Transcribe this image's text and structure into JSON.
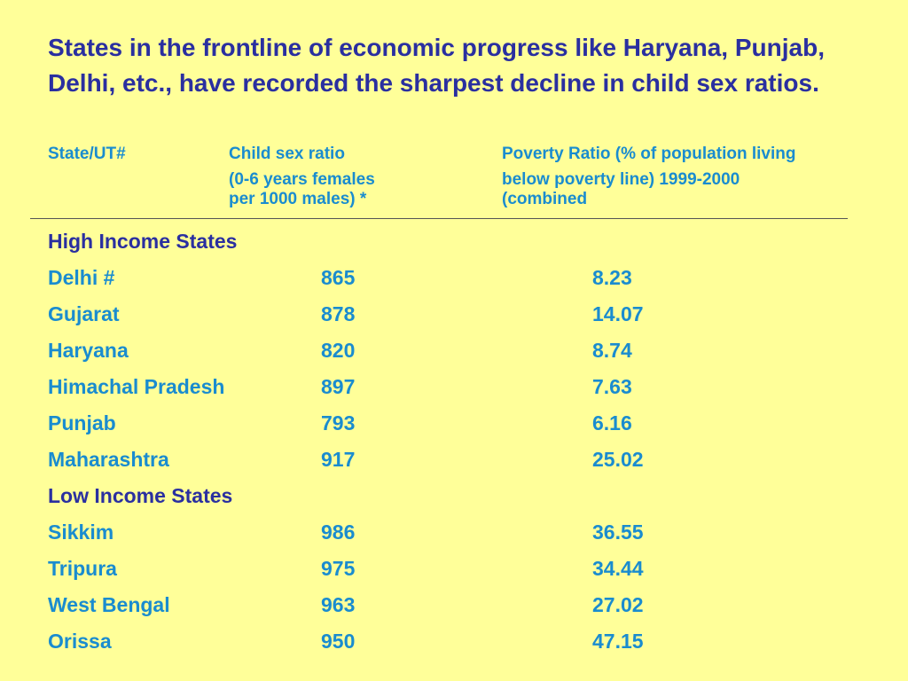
{
  "title": "States in the frontline of economic progress like Haryana, Punjab, Delhi, etc., have recorded the sharpest decline in child sex ratios.",
  "headers": {
    "state": "State/UT#",
    "child_sex_ratio": [
      "Child sex ratio",
      "(0-6 years females",
      "per 1000 males) *"
    ],
    "poverty_ratio": [
      "Poverty Ratio (% of population living",
      "below poverty line) 1999-2000",
      "(combined"
    ]
  },
  "rows": [
    {
      "type": "group",
      "label": "High Income States"
    },
    {
      "type": "data",
      "state": "Delhi #",
      "csr": "865",
      "poverty": "8.23"
    },
    {
      "type": "data",
      "state": "Gujarat",
      "csr": "878",
      "poverty": "14.07"
    },
    {
      "type": "data",
      "state": "Haryana",
      "csr": "820",
      "poverty": "8.74"
    },
    {
      "type": "data",
      "state": "Himachal Pradesh",
      "csr": "897",
      "poverty": "7.63"
    },
    {
      "type": "data",
      "state": "Punjab",
      "csr": "793",
      "poverty": "6.16"
    },
    {
      "type": "data",
      "state": "Maharashtra",
      "csr": "917",
      "poverty": "25.02"
    },
    {
      "type": "group",
      "label": "Low Income States"
    },
    {
      "type": "data",
      "state": "Sikkim",
      "csr": "986",
      "poverty": "36.55"
    },
    {
      "type": "data",
      "state": "Tripura",
      "csr": "975",
      "poverty": "34.44"
    },
    {
      "type": "data",
      "state": "West Bengal",
      "csr": "963",
      "poverty": "27.02"
    },
    {
      "type": "data",
      "state": "Orissa",
      "csr": "950",
      "poverty": "47.15"
    }
  ],
  "colors": {
    "background": "#ffff99",
    "title": "#2a2fa0",
    "data_text": "#1a8ccf"
  }
}
